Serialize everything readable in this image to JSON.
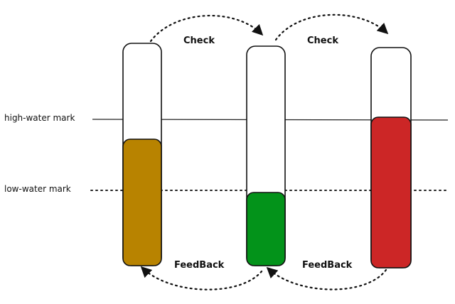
{
  "marks": {
    "high_water": "high-water mark",
    "low_water": "low-water mark"
  },
  "arrows": {
    "check_label": "Check",
    "feedback_label": "FeedBack"
  },
  "tubes": [
    {
      "fill_color": "#b88300",
      "fill_level": "between low and high water mark"
    },
    {
      "fill_color": "#03931a",
      "fill_level": "below low water mark"
    },
    {
      "fill_color": "#cc2626",
      "fill_level": "above high water mark"
    }
  ],
  "colors": {
    "outline": "#111111",
    "line": "#222222"
  }
}
